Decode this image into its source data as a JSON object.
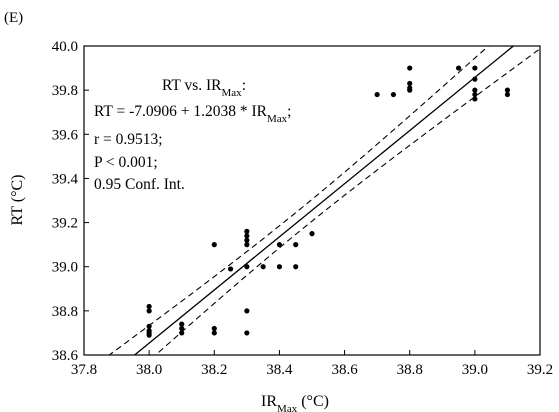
{
  "panel_label": "(E)",
  "chart_data": {
    "type": "scatter",
    "xlabel": {
      "main": "IR",
      "sub": "Max",
      "unit": " (°C)"
    },
    "ylabel": "RT (°C)",
    "xlim": [
      37.8,
      39.2
    ],
    "ylim": [
      38.6,
      40.0
    ],
    "xticks": [
      "37.8",
      "38.0",
      "38.2",
      "38.4",
      "38.6",
      "38.8",
      "39.0",
      "39.2"
    ],
    "yticks": [
      "38.6",
      "38.8",
      "39.0",
      "39.2",
      "39.4",
      "39.6",
      "39.8",
      "40.0"
    ],
    "fit": {
      "intercept": -7.0906,
      "slope": 1.2038,
      "style": "solid"
    },
    "confidence_band": {
      "level": 0.95,
      "style": "dashed"
    },
    "annotation": {
      "line1_main": "RT vs. IR",
      "line1_sub": "Max",
      "line1_end": ":",
      "line2_main": "RT = -7.0906 + 1.2038 * IR",
      "line2_sub": "Max",
      "line2_end": ";",
      "line3": "r = 0.9513;",
      "line4": "P < 0.001;",
      "line5": "0.95 Conf. Int."
    },
    "points": [
      {
        "x": 38.0,
        "y": 38.82
      },
      {
        "x": 38.0,
        "y": 38.8
      },
      {
        "x": 38.0,
        "y": 38.73
      },
      {
        "x": 38.0,
        "y": 38.71
      },
      {
        "x": 38.0,
        "y": 38.7
      },
      {
        "x": 38.0,
        "y": 38.69
      },
      {
        "x": 38.1,
        "y": 38.74
      },
      {
        "x": 38.1,
        "y": 38.72
      },
      {
        "x": 38.1,
        "y": 38.7
      },
      {
        "x": 38.2,
        "y": 39.1
      },
      {
        "x": 38.2,
        "y": 38.72
      },
      {
        "x": 38.2,
        "y": 38.7
      },
      {
        "x": 38.25,
        "y": 38.99
      },
      {
        "x": 38.3,
        "y": 39.16
      },
      {
        "x": 38.3,
        "y": 39.14
      },
      {
        "x": 38.3,
        "y": 39.12
      },
      {
        "x": 38.3,
        "y": 39.1
      },
      {
        "x": 38.3,
        "y": 39.0
      },
      {
        "x": 38.3,
        "y": 38.8
      },
      {
        "x": 38.3,
        "y": 38.7
      },
      {
        "x": 38.35,
        "y": 39.0
      },
      {
        "x": 38.4,
        "y": 39.1
      },
      {
        "x": 38.4,
        "y": 39.0
      },
      {
        "x": 38.45,
        "y": 39.1
      },
      {
        "x": 38.45,
        "y": 39.0
      },
      {
        "x": 38.5,
        "y": 39.15
      },
      {
        "x": 38.7,
        "y": 39.78
      },
      {
        "x": 38.75,
        "y": 39.78
      },
      {
        "x": 38.8,
        "y": 39.9
      },
      {
        "x": 38.8,
        "y": 39.83
      },
      {
        "x": 38.8,
        "y": 39.81
      },
      {
        "x": 38.8,
        "y": 39.8
      },
      {
        "x": 38.95,
        "y": 39.9
      },
      {
        "x": 39.0,
        "y": 39.9
      },
      {
        "x": 39.0,
        "y": 39.85
      },
      {
        "x": 39.0,
        "y": 39.8
      },
      {
        "x": 39.0,
        "y": 39.78
      },
      {
        "x": 39.0,
        "y": 39.76
      },
      {
        "x": 39.1,
        "y": 39.8
      },
      {
        "x": 39.1,
        "y": 39.78
      }
    ]
  }
}
